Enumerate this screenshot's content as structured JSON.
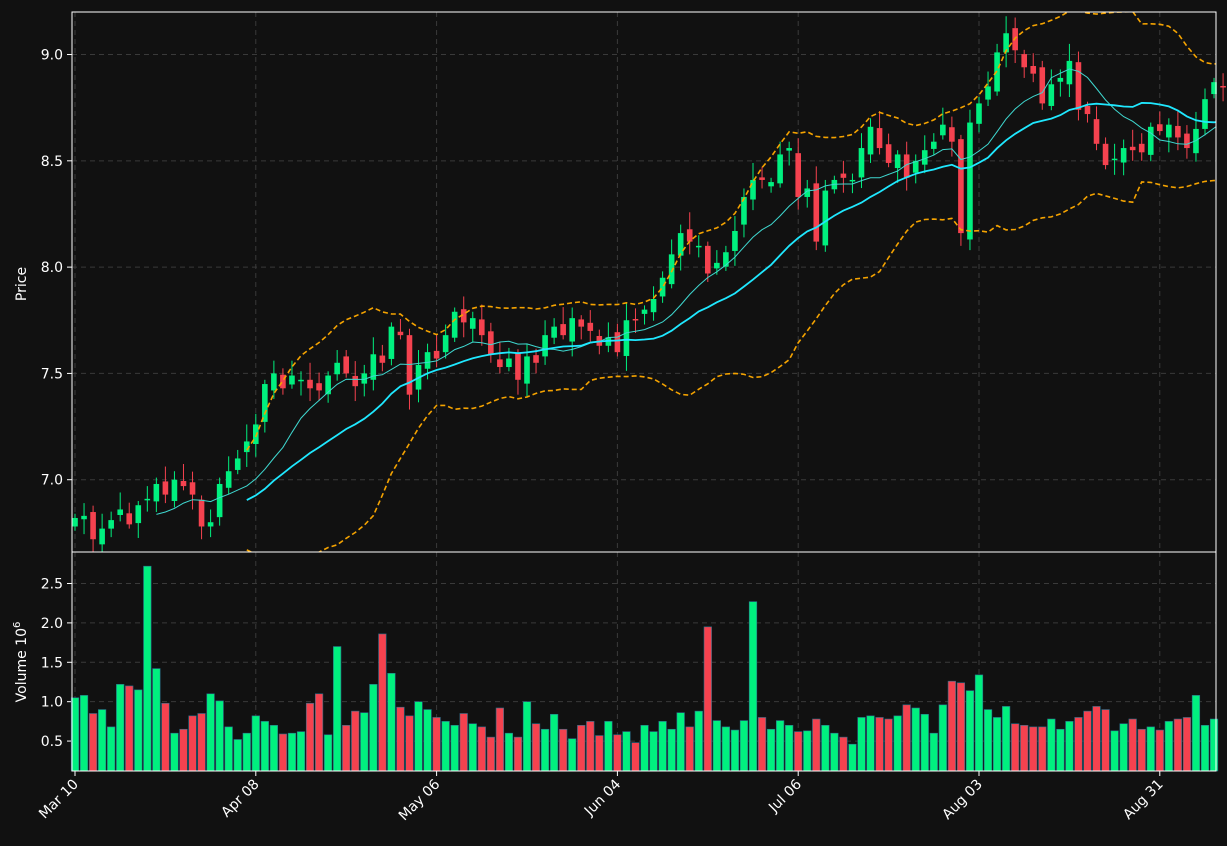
{
  "colors": {
    "background": "#111111",
    "up": "#00f07f",
    "down": "#f5424f",
    "ma_fast": "#3fd8d0",
    "ma_slow": "#1fe8ff",
    "bollinger": "#f5a300",
    "grid": "#3a3a3a",
    "frame": "#ffffff"
  },
  "chart_data": {
    "type": "candlestick",
    "ylabel": "Price",
    "volume_label": "Volume",
    "volume_exponent_base": "10",
    "volume_exponent": "6",
    "price_ylim": [
      6.66,
      9.2
    ],
    "price_ticks": [
      "7.0",
      "7.5",
      "8.0",
      "8.5",
      "9.0"
    ],
    "price_tick_values": [
      7.0,
      7.5,
      8.0,
      8.5,
      9.0
    ],
    "volume_ylim": [
      0.12,
      2.9
    ],
    "volume_ticks": [
      "0.5",
      "1.0",
      "1.5",
      "2.0",
      "2.5"
    ],
    "volume_tick_values": [
      0.5,
      1.0,
      1.5,
      2.0,
      2.5
    ],
    "x_tick_labels": [
      "Mar 10",
      "Apr 08",
      "May 06",
      "Jun 04",
      "Jul 06",
      "Aug 03",
      "Aug 31"
    ],
    "x_tick_indices": [
      0,
      20,
      40,
      60,
      80,
      100,
      120
    ],
    "grid": true,
    "closes": [
      6.82,
      6.83,
      6.72,
      6.77,
      6.81,
      6.86,
      6.79,
      6.88,
      6.91,
      6.98,
      6.93,
      7.0,
      6.97,
      6.93,
      6.78,
      6.8,
      6.98,
      7.04,
      7.1,
      7.18,
      7.26,
      7.45,
      7.5,
      7.43,
      7.49,
      7.47,
      7.43,
      7.42,
      7.49,
      7.55,
      7.5,
      7.44,
      7.5,
      7.59,
      7.55,
      7.72,
      7.68,
      7.4,
      7.54,
      7.6,
      7.57,
      7.68,
      7.79,
      7.74,
      7.76,
      7.68,
      7.59,
      7.53,
      7.57,
      7.47,
      7.58,
      7.55,
      7.68,
      7.72,
      7.68,
      7.76,
      7.72,
      7.7,
      7.63,
      7.67,
      7.6,
      7.75,
      7.75,
      7.8,
      7.85,
      7.95,
      8.06,
      8.16,
      8.12,
      8.1,
      7.97,
      8.02,
      8.07,
      8.17,
      8.33,
      8.41,
      8.41,
      8.4,
      8.53,
      8.56,
      8.33,
      8.37,
      8.12,
      8.36,
      8.41,
      8.42,
      8.41,
      8.56,
      8.66,
      8.56,
      8.49,
      8.53,
      8.42,
      8.5,
      8.55,
      8.59,
      8.67,
      8.59,
      8.16,
      8.68,
      8.77,
      8.85,
      9.01,
      9.1,
      9.02,
      8.94,
      8.91,
      8.77,
      8.86,
      8.89,
      8.97,
      8.74,
      8.72,
      8.58,
      8.48,
      8.51,
      8.56,
      8.55,
      8.54,
      8.66,
      8.64,
      8.67,
      8.61,
      8.56,
      8.65,
      8.79,
      8.87,
      8.85,
      8.79
    ],
    "volumes": [
      1.05,
      1.08,
      0.85,
      0.9,
      0.68,
      1.22,
      1.2,
      1.15,
      2.72,
      1.42,
      0.98,
      0.6,
      0.65,
      0.82,
      0.85,
      1.1,
      1.01,
      0.68,
      0.52,
      0.6,
      0.82,
      0.75,
      0.7,
      0.59,
      0.6,
      0.62,
      0.98,
      1.1,
      0.58,
      1.7,
      0.7,
      0.88,
      0.86,
      1.22,
      1.86,
      1.36,
      0.93,
      0.82,
      1.0,
      0.9,
      0.8,
      0.75,
      0.7,
      0.85,
      0.72,
      0.68,
      0.55,
      0.92,
      0.6,
      0.55,
      1.0,
      0.72,
      0.65,
      0.84,
      0.65,
      0.53,
      0.7,
      0.75,
      0.57,
      0.75,
      0.58,
      0.62,
      0.48,
      0.7,
      0.62,
      0.75,
      0.65,
      0.86,
      0.68,
      0.88,
      1.95,
      0.76,
      0.68,
      0.64,
      0.76,
      2.27,
      0.8,
      0.65,
      0.76,
      0.7,
      0.62,
      0.63,
      0.78,
      0.7,
      0.6,
      0.55,
      0.46,
      0.8,
      0.82,
      0.8,
      0.78,
      0.82,
      0.96,
      0.92,
      0.84,
      0.6,
      0.96,
      1.26,
      1.24,
      1.14,
      1.34,
      0.9,
      0.8,
      0.94,
      0.72,
      0.7,
      0.68,
      0.68,
      0.78,
      0.65,
      0.75,
      0.8,
      0.88,
      0.94,
      0.9,
      0.63,
      0.72,
      0.78,
      0.65,
      0.68,
      0.64,
      0.75,
      0.78,
      0.8,
      1.08,
      0.7,
      0.78
    ]
  }
}
